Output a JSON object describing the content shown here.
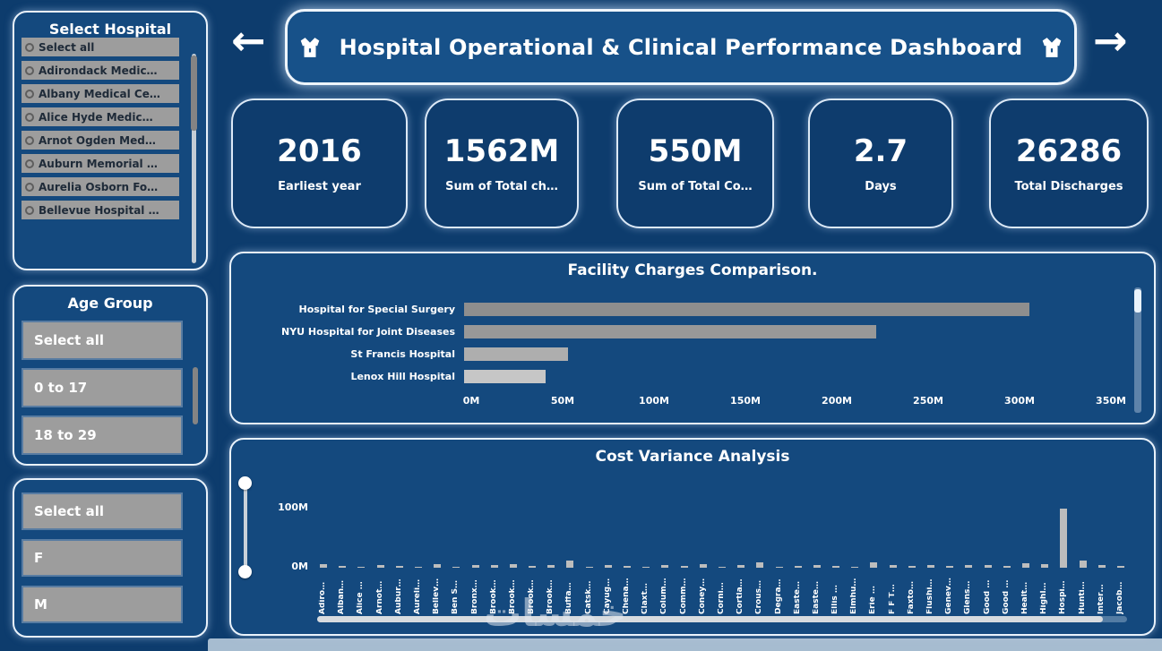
{
  "header": {
    "title": "Hospital Operational & Clinical Performance Dashboard",
    "nav": {
      "left": "←",
      "right": "→"
    },
    "icons": {
      "left": "scrubs-icon",
      "right": "scrubs-icon"
    }
  },
  "filters": {
    "hospital": {
      "title": "Select Hospital",
      "items": [
        "Select all",
        "Adirondack Medic…",
        "Albany Medical Ce…",
        "Alice Hyde Medic…",
        "Arnot Ogden Med…",
        "Auburn Memorial …",
        "Aurelia Osborn Fo…",
        "Bellevue Hospital …"
      ]
    },
    "age_group": {
      "title": "Age Group",
      "items": [
        "Select all",
        "0 to 17",
        "18 to 29"
      ]
    },
    "gender": {
      "items": [
        "Select all",
        "F",
        "M"
      ]
    }
  },
  "kpis": [
    {
      "value": "2016",
      "label": "Earliest year"
    },
    {
      "value": "1562M",
      "label": "Sum of Total ch…"
    },
    {
      "value": "550M",
      "label": "Sum of Total Co…"
    },
    {
      "value": "2.7",
      "label": "Days"
    },
    {
      "value": "26286",
      "label": "Total Discharges"
    }
  ],
  "chart_data": [
    {
      "type": "bar",
      "orientation": "horizontal",
      "title": "Facility Charges Comparison.",
      "categories": [
        "Hospital for Special Surgery",
        "NYU Hospital for Joint Diseases",
        "St Francis Hospital",
        "Lenox Hill Hospital"
      ],
      "values": [
        306,
        223,
        56,
        44
      ],
      "unit": "M",
      "xlim": [
        0,
        350
      ],
      "x_ticks": [
        "0M",
        "50M",
        "100M",
        "150M",
        "200M",
        "250M",
        "300M",
        "350M"
      ],
      "bar_colors": [
        "#8e8e8e",
        "#989898",
        "#aeaeae",
        "#c6c6c6"
      ],
      "grid": false,
      "legend": false
    },
    {
      "type": "bar",
      "orientation": "vertical",
      "title": "Cost Variance Analysis",
      "categories": [
        "Adiro…",
        "Alban…",
        "Alice …",
        "Arnot…",
        "Aubur…",
        "Aureli…",
        "Bellev…",
        "Ben S…",
        "Bronx…",
        "Brook…",
        "Brook…",
        "Brook…",
        "Brook…",
        "Buffa…",
        "Catsk…",
        "Cayug…",
        "Chena…",
        "Claxt…",
        "Colum…",
        "Comm…",
        "Coney…",
        "Corni…",
        "Cortla…",
        "Crous…",
        "Degra…",
        "Easte…",
        "Easte…",
        "Ellis …",
        "Elmhu…",
        "Erie …",
        "F F T…",
        "Faxto…",
        "Flushi…",
        "Genev…",
        "Glens…",
        "Good …",
        "Good …",
        "Healt…",
        "Highl…",
        "Hospi…",
        "Hunti…",
        "Inter…",
        "Jacob…"
      ],
      "values": [
        6,
        3,
        2,
        4,
        3,
        2,
        7,
        2,
        5,
        4,
        6,
        3,
        5,
        13,
        2,
        4,
        3,
        2,
        5,
        3,
        6,
        2,
        4,
        9,
        2,
        3,
        4,
        3,
        2,
        10,
        5,
        3,
        4,
        3,
        4,
        5,
        3,
        8,
        6,
        105,
        13,
        4,
        3
      ],
      "unit": "M",
      "ylim": [
        0,
        150
      ],
      "y_ticks": [
        "0M",
        "100M"
      ],
      "bar_color": "#bdbdbd",
      "grid": false,
      "legend": false
    }
  ],
  "watermark": {
    "text": "خمسات"
  },
  "colors": {
    "background": "#0d3c6d",
    "panel": "#14497e",
    "panel_border": "#e9f2fb",
    "header": "#175189",
    "filter_item_gray": "#9d9d9d",
    "kpi_background": "#0e3c6d"
  }
}
